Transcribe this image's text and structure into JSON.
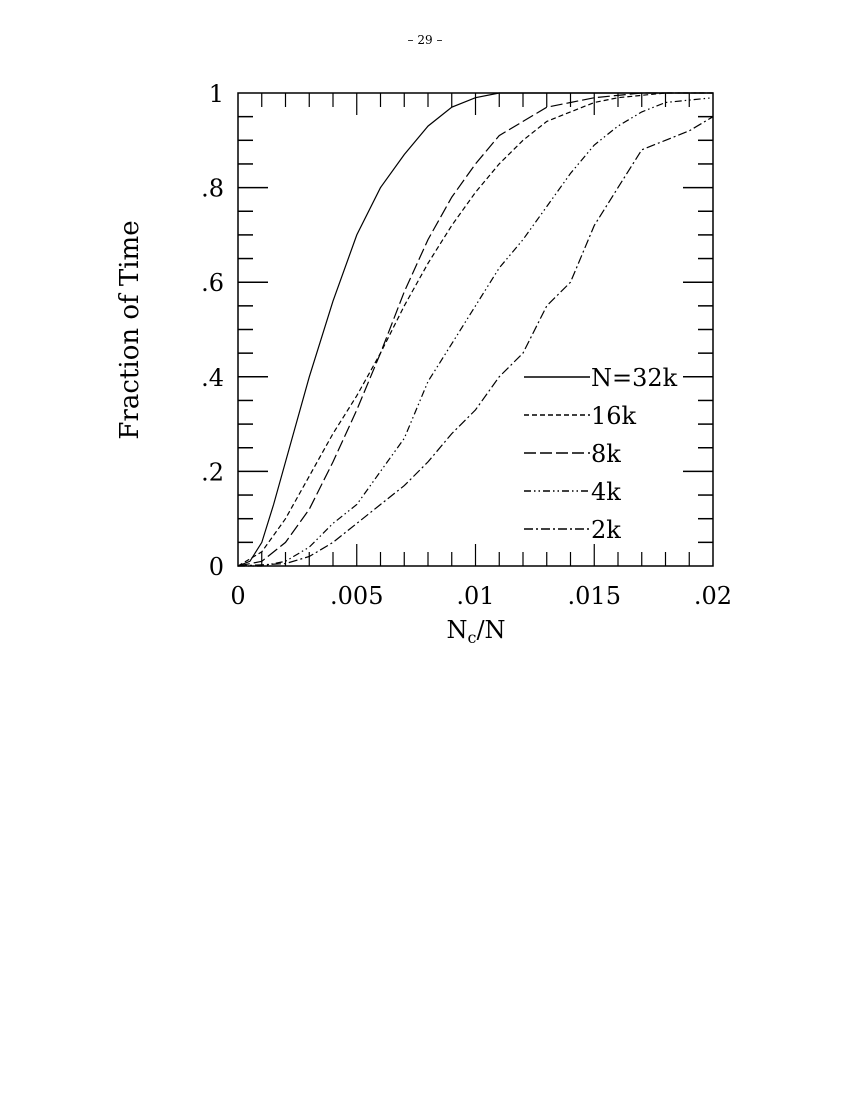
{
  "page_number": "– 29 –",
  "chart_data": {
    "type": "line",
    "title": "",
    "xlabel": "N_c/N",
    "xlabel_main": "N",
    "xlabel_sub": "c",
    "xlabel_rest": "/N",
    "ylabel": "Fraction of Time",
    "xlim": [
      0,
      0.02
    ],
    "ylim": [
      0,
      1
    ],
    "xticks": [
      0,
      0.005,
      0.01,
      0.015,
      0.02
    ],
    "xtick_labels": [
      "0",
      ".005",
      ".01",
      ".015",
      ".02"
    ],
    "yticks": [
      0,
      0.2,
      0.4,
      0.6,
      0.8,
      1
    ],
    "ytick_labels": [
      "0",
      ".2",
      ".4",
      ".6",
      ".8",
      "1"
    ],
    "grid": false,
    "legend_position": "center-right",
    "series": [
      {
        "name": "N=32k",
        "dash": "solid",
        "x": [
          0,
          0.0005,
          0.001,
          0.0015,
          0.002,
          0.003,
          0.004,
          0.005,
          0.006,
          0.007,
          0.008,
          0.009,
          0.01,
          0.011,
          0.02
        ],
        "y": [
          0,
          0.01,
          0.05,
          0.13,
          0.22,
          0.4,
          0.56,
          0.7,
          0.8,
          0.87,
          0.93,
          0.97,
          0.99,
          1,
          1
        ]
      },
      {
        "name": "16k",
        "dash": "short",
        "x": [
          0,
          0.001,
          0.002,
          0.003,
          0.004,
          0.005,
          0.006,
          0.007,
          0.008,
          0.009,
          0.01,
          0.011,
          0.012,
          0.013,
          0.014,
          0.015,
          0.016,
          0.018,
          0.02
        ],
        "y": [
          0,
          0.03,
          0.1,
          0.19,
          0.28,
          0.36,
          0.45,
          0.55,
          0.64,
          0.72,
          0.79,
          0.85,
          0.9,
          0.94,
          0.96,
          0.98,
          0.99,
          1,
          1
        ]
      },
      {
        "name": "8k",
        "dash": "long",
        "x": [
          0,
          0.001,
          0.002,
          0.003,
          0.004,
          0.005,
          0.006,
          0.007,
          0.008,
          0.009,
          0.01,
          0.011,
          0.012,
          0.013,
          0.014,
          0.015,
          0.017,
          0.02
        ],
        "y": [
          0,
          0.01,
          0.05,
          0.12,
          0.22,
          0.33,
          0.45,
          0.58,
          0.69,
          0.78,
          0.85,
          0.91,
          0.94,
          0.97,
          0.98,
          0.99,
          1,
          1
        ]
      },
      {
        "name": "4k",
        "dash": "dashdotdot",
        "x": [
          0,
          0.001,
          0.002,
          0.003,
          0.004,
          0.005,
          0.006,
          0.007,
          0.008,
          0.009,
          0.01,
          0.011,
          0.012,
          0.013,
          0.014,
          0.015,
          0.016,
          0.017,
          0.018,
          0.02
        ],
        "y": [
          0,
          0,
          0.01,
          0.04,
          0.09,
          0.13,
          0.2,
          0.27,
          0.39,
          0.47,
          0.55,
          0.63,
          0.69,
          0.76,
          0.83,
          0.89,
          0.93,
          0.96,
          0.98,
          0.99
        ]
      },
      {
        "name": "2k",
        "dash": "dashdot",
        "x": [
          0,
          0.002,
          0.003,
          0.004,
          0.005,
          0.006,
          0.007,
          0.008,
          0.009,
          0.01,
          0.011,
          0.012,
          0.013,
          0.014,
          0.015,
          0.016,
          0.017,
          0.018,
          0.019,
          0.02
        ],
        "y": [
          0,
          0.005,
          0.02,
          0.05,
          0.09,
          0.13,
          0.17,
          0.22,
          0.28,
          0.33,
          0.4,
          0.45,
          0.55,
          0.6,
          0.72,
          0.8,
          0.88,
          0.9,
          0.92,
          0.95
        ]
      }
    ]
  }
}
